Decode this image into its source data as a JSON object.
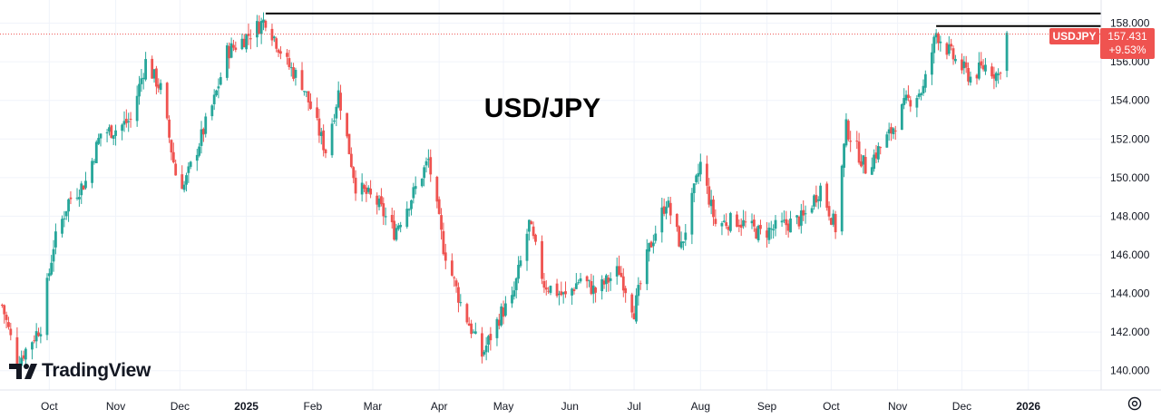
{
  "chart_data": {
    "type": "candlestick",
    "title": "USD/JPY",
    "symbol": "USDJPY",
    "last_price": "157.431",
    "change_pct": "+9.53%",
    "colors": {
      "up": "#26a69a",
      "down": "#ef5350",
      "badge": "#ef5350",
      "line": "#000000"
    },
    "y_ticks": [
      "158.000",
      "156.000",
      "154.000",
      "152.000",
      "150.000",
      "148.000",
      "146.000",
      "144.000",
      "142.000",
      "140.000"
    ],
    "ylim": [
      139.0,
      159.2
    ],
    "x_ticks": [
      {
        "label": "Oct",
        "date": "2024-10-01",
        "bold": false
      },
      {
        "label": "Nov",
        "date": "2024-11-01",
        "bold": false
      },
      {
        "label": "Dec",
        "date": "2024-12-01",
        "bold": false
      },
      {
        "label": "2025",
        "date": "2025-01-01",
        "bold": true
      },
      {
        "label": "Feb",
        "date": "2025-02-01",
        "bold": false
      },
      {
        "label": "Mar",
        "date": "2025-03-01",
        "bold": false
      },
      {
        "label": "Apr",
        "date": "2025-04-01",
        "bold": false
      },
      {
        "label": "May",
        "date": "2025-05-01",
        "bold": false
      },
      {
        "label": "Jun",
        "date": "2025-06-01",
        "bold": false
      },
      {
        "label": "Jul",
        "date": "2025-07-01",
        "bold": false
      },
      {
        "label": "Aug",
        "date": "2025-08-01",
        "bold": false
      },
      {
        "label": "Sep",
        "date": "2025-09-01",
        "bold": false
      },
      {
        "label": "Oct",
        "date": "2025-10-01",
        "bold": false
      },
      {
        "label": "Nov",
        "date": "2025-11-01",
        "bold": false
      },
      {
        "label": "Dec",
        "date": "2025-12-01",
        "bold": false
      },
      {
        "label": "2026",
        "date": "2026-01-01",
        "bold": true
      }
    ],
    "x_range": [
      "2024-09-08",
      "2026-02-04"
    ],
    "resistance_lines": [
      {
        "from": "2025-01-10",
        "to": "2026-02-04",
        "value": 158.5
      },
      {
        "from": "2025-11-19",
        "to": "2026-02-04",
        "value": 157.85
      }
    ],
    "last_price_value": 157.43,
    "anchors": [
      [
        "2024-09-09",
        143.4
      ],
      [
        "2024-09-16",
        140.4
      ],
      [
        "2024-09-27",
        142.3
      ],
      [
        "2024-10-03",
        146.5
      ],
      [
        "2024-10-10",
        148.8
      ],
      [
        "2024-10-18",
        149.8
      ],
      [
        "2024-10-25",
        152.3
      ],
      [
        "2024-11-01",
        152.5
      ],
      [
        "2024-11-08",
        153.0
      ],
      [
        "2024-11-15",
        156.0
      ],
      [
        "2024-11-22",
        154.6
      ],
      [
        "2024-11-29",
        150.2
      ],
      [
        "2024-12-03",
        149.6
      ],
      [
        "2024-12-09",
        151.5
      ],
      [
        "2024-12-17",
        154.0
      ],
      [
        "2024-12-23",
        156.5
      ],
      [
        "2024-12-31",
        157.2
      ],
      [
        "2025-01-10",
        158.2
      ],
      [
        "2025-01-20",
        155.9
      ],
      [
        "2025-01-27",
        154.9
      ],
      [
        "2025-02-07",
        151.4
      ],
      [
        "2025-02-13",
        154.4
      ],
      [
        "2025-02-21",
        149.6
      ],
      [
        "2025-03-03",
        148.7
      ],
      [
        "2025-03-11",
        147.2
      ],
      [
        "2025-03-20",
        149.2
      ],
      [
        "2025-03-27",
        150.9
      ],
      [
        "2025-04-03",
        146.4
      ],
      [
        "2025-04-11",
        143.5
      ],
      [
        "2025-04-21",
        140.8
      ],
      [
        "2025-04-30",
        143.0
      ],
      [
        "2025-05-05",
        143.6
      ],
      [
        "2025-05-13",
        147.6
      ],
      [
        "2025-05-20",
        144.5
      ],
      [
        "2025-05-30",
        143.8
      ],
      [
        "2025-06-06",
        144.8
      ],
      [
        "2025-06-13",
        144.1
      ],
      [
        "2025-06-24",
        145.2
      ],
      [
        "2025-07-01",
        143.1
      ],
      [
        "2025-07-08",
        146.3
      ],
      [
        "2025-07-16",
        148.8
      ],
      [
        "2025-07-23",
        146.4
      ],
      [
        "2025-08-01",
        150.7
      ],
      [
        "2025-08-08",
        147.6
      ],
      [
        "2025-08-18",
        147.8
      ],
      [
        "2025-08-29",
        147.1
      ],
      [
        "2025-09-08",
        147.5
      ],
      [
        "2025-09-18",
        147.9
      ],
      [
        "2025-09-26",
        149.5
      ],
      [
        "2025-10-03",
        147.4
      ],
      [
        "2025-10-08",
        152.6
      ],
      [
        "2025-10-17",
        150.5
      ],
      [
        "2025-10-28",
        152.2
      ],
      [
        "2025-11-05",
        153.9
      ],
      [
        "2025-11-13",
        154.6
      ],
      [
        "2025-11-19",
        157.5
      ],
      [
        "2025-11-27",
        156.2
      ],
      [
        "2025-12-05",
        155.2
      ],
      [
        "2025-12-12",
        155.8
      ],
      [
        "2025-12-18",
        155.3
      ],
      [
        "2025-12-22",
        157.4
      ]
    ]
  }
}
